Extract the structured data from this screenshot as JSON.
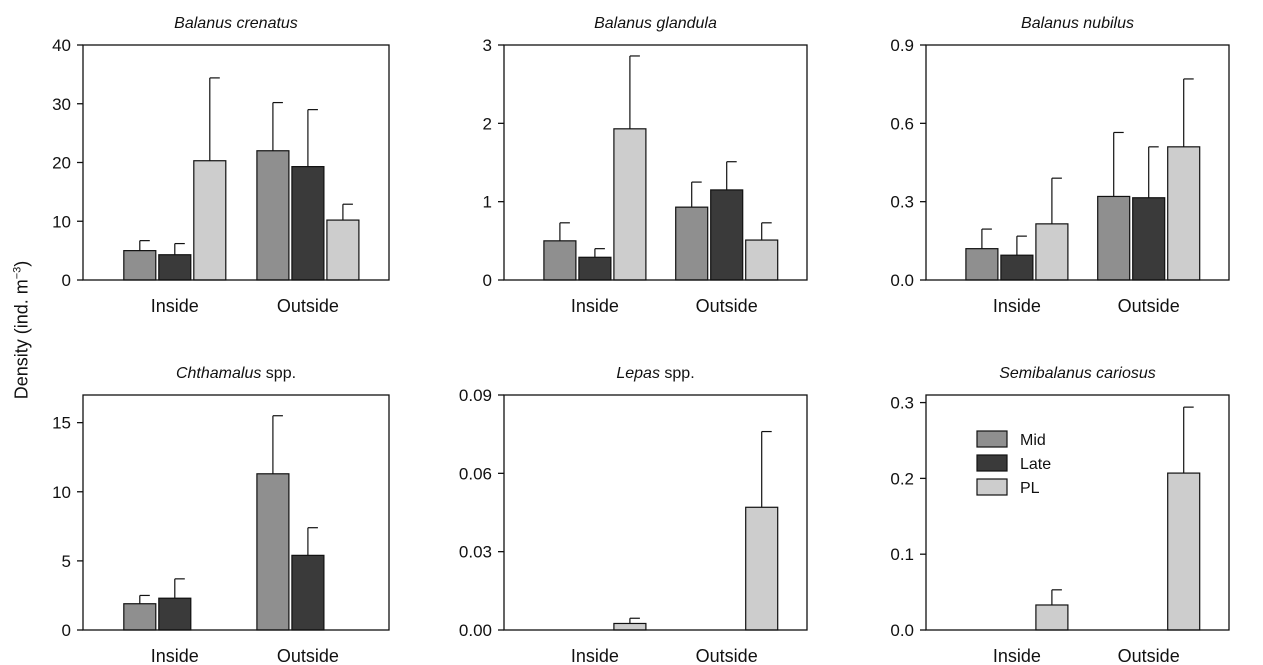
{
  "figure": {
    "ylabel_prefix": "Density (ind. m",
    "ylabel_sup": "−3",
    "ylabel_suffix": ")"
  },
  "colors": {
    "Mid": "#8f8f8f",
    "Late": "#3a3a3a",
    "PL": "#cdcdcd"
  },
  "chart_data": [
    {
      "type": "bar",
      "title_italic": "Balanus crenatus",
      "title_roman": "",
      "categories": [
        "Inside",
        "Outside"
      ],
      "ylim": [
        0,
        40
      ],
      "yticks": [
        "0",
        "10",
        "20",
        "30",
        "40"
      ],
      "ytick_values": [
        0,
        10,
        20,
        30,
        40
      ],
      "series": [
        {
          "name": "Mid",
          "values": [
            5.0,
            22.0
          ],
          "errors": [
            1.7,
            8.2
          ]
        },
        {
          "name": "Late",
          "values": [
            4.3,
            19.3
          ],
          "errors": [
            1.9,
            9.7
          ]
        },
        {
          "name": "PL",
          "values": [
            20.3,
            10.2
          ],
          "errors": [
            14.1,
            2.7
          ]
        }
      ],
      "legend": false
    },
    {
      "type": "bar",
      "title_italic": "Balanus glandula",
      "title_roman": "",
      "categories": [
        "Inside",
        "Outside"
      ],
      "ylim": [
        0,
        3
      ],
      "yticks": [
        "0",
        "1",
        "2",
        "3"
      ],
      "ytick_values": [
        0,
        1,
        2,
        3
      ],
      "series": [
        {
          "name": "Mid",
          "values": [
            0.5,
            0.93
          ],
          "errors": [
            0.23,
            0.32
          ]
        },
        {
          "name": "Late",
          "values": [
            0.29,
            1.15
          ],
          "errors": [
            0.11,
            0.36
          ]
        },
        {
          "name": "PL",
          "values": [
            1.93,
            0.51
          ],
          "errors": [
            0.93,
            0.22
          ]
        }
      ],
      "legend": false
    },
    {
      "type": "bar",
      "title_italic": "Balanus nubilus",
      "title_roman": "",
      "categories": [
        "Inside",
        "Outside"
      ],
      "ylim": [
        0,
        0.9
      ],
      "yticks": [
        "0.0",
        "0.3",
        "0.6",
        "0.9"
      ],
      "ytick_values": [
        0,
        0.3,
        0.6,
        0.9
      ],
      "series": [
        {
          "name": "Mid",
          "values": [
            0.12,
            0.32
          ],
          "errors": [
            0.075,
            0.245
          ]
        },
        {
          "name": "Late",
          "values": [
            0.095,
            0.315
          ],
          "errors": [
            0.073,
            0.195
          ]
        },
        {
          "name": "PL",
          "values": [
            0.215,
            0.51
          ],
          "errors": [
            0.175,
            0.26
          ]
        }
      ],
      "legend": false
    },
    {
      "type": "bar",
      "title_italic": "Chthamalus",
      "title_roman": " spp.",
      "categories": [
        "Inside",
        "Outside"
      ],
      "ylim": [
        0,
        17
      ],
      "yticks": [
        "0",
        "5",
        "10",
        "15"
      ],
      "ytick_values": [
        0,
        5,
        10,
        15
      ],
      "series": [
        {
          "name": "Mid",
          "values": [
            1.9,
            11.3
          ],
          "errors": [
            0.6,
            4.2
          ]
        },
        {
          "name": "Late",
          "values": [
            2.3,
            5.4
          ],
          "errors": [
            1.4,
            2.0
          ]
        },
        {
          "name": "PL",
          "values": [
            0,
            0
          ],
          "errors": [
            0,
            0
          ]
        }
      ],
      "legend": false
    },
    {
      "type": "bar",
      "title_italic": "Lepas",
      "title_roman": " spp.",
      "categories": [
        "Inside",
        "Outside"
      ],
      "ylim": [
        0,
        0.09
      ],
      "yticks": [
        "0.00",
        "0.03",
        "0.06",
        "0.09"
      ],
      "ytick_values": [
        0,
        0.03,
        0.06,
        0.09
      ],
      "series": [
        {
          "name": "Mid",
          "values": [
            0,
            0
          ],
          "errors": [
            0,
            0
          ]
        },
        {
          "name": "Late",
          "values": [
            0,
            0
          ],
          "errors": [
            0,
            0
          ]
        },
        {
          "name": "PL",
          "values": [
            0.0025,
            0.047
          ],
          "errors": [
            0.002,
            0.029
          ]
        }
      ],
      "legend": false
    },
    {
      "type": "bar",
      "title_italic": "Semibalanus cariosus",
      "title_roman": "",
      "categories": [
        "Inside",
        "Outside"
      ],
      "ylim": [
        0,
        0.31
      ],
      "yticks": [
        "0.0",
        "0.1",
        "0.2",
        "0.3"
      ],
      "ytick_values": [
        0,
        0.1,
        0.2,
        0.3
      ],
      "series": [
        {
          "name": "Mid",
          "values": [
            0,
            0
          ],
          "errors": [
            0,
            0
          ]
        },
        {
          "name": "Late",
          "values": [
            0,
            0
          ],
          "errors": [
            0,
            0
          ]
        },
        {
          "name": "PL",
          "values": [
            0.033,
            0.207
          ],
          "errors": [
            0.02,
            0.087
          ]
        }
      ],
      "legend": true,
      "legend_position": "top-left",
      "legend_labels": [
        "Mid",
        "Late",
        "PL"
      ]
    }
  ]
}
